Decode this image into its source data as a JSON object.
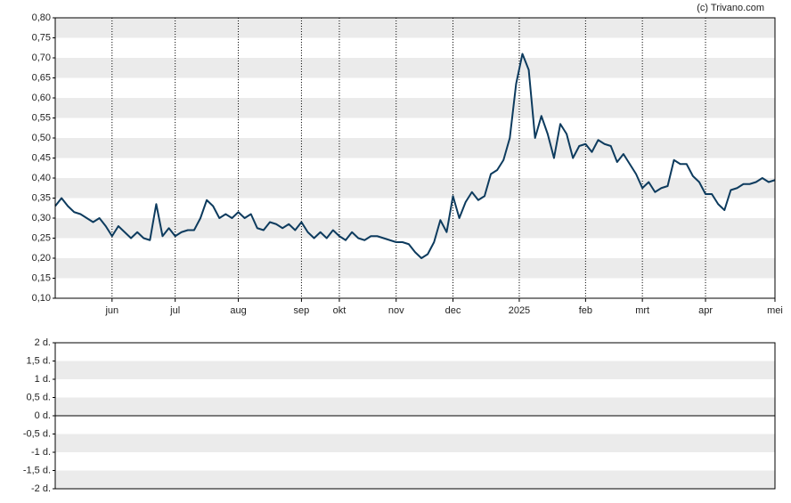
{
  "chart_data": [
    {
      "type": "line",
      "credit": "(c) Trivano.com",
      "series": [
        {
          "color": "#0d3b5e",
          "values": [
            0.33,
            0.35,
            0.33,
            0.315,
            0.31,
            0.3,
            0.29,
            0.3,
            0.28,
            0.255,
            0.28,
            0.265,
            0.25,
            0.265,
            0.25,
            0.245,
            0.335,
            0.255,
            0.275,
            0.255,
            0.265,
            0.27,
            0.27,
            0.3,
            0.345,
            0.33,
            0.3,
            0.31,
            0.3,
            0.315,
            0.3,
            0.31,
            0.275,
            0.27,
            0.29,
            0.285,
            0.275,
            0.285,
            0.27,
            0.29,
            0.265,
            0.25,
            0.265,
            0.25,
            0.27,
            0.255,
            0.245,
            0.265,
            0.25,
            0.245,
            0.255,
            0.255,
            0.25,
            0.245,
            0.24,
            0.24,
            0.235,
            0.215,
            0.2,
            0.21,
            0.24,
            0.295,
            0.265,
            0.355,
            0.3,
            0.34,
            0.365,
            0.345,
            0.355,
            0.41,
            0.42,
            0.445,
            0.5,
            0.635,
            0.71,
            0.67,
            0.5,
            0.555,
            0.51,
            0.45,
            0.535,
            0.51,
            0.45,
            0.48,
            0.485,
            0.465,
            0.495,
            0.485,
            0.48,
            0.44,
            0.46,
            0.435,
            0.41,
            0.375,
            0.39,
            0.365,
            0.375,
            0.38,
            0.445,
            0.435,
            0.435,
            0.405,
            0.39,
            0.36,
            0.36,
            0.335,
            0.32,
            0.37,
            0.375,
            0.385,
            0.385,
            0.39,
            0.4,
            0.39,
            0.395
          ]
        }
      ],
      "xlim": [
        0,
        114
      ],
      "xticks": [
        {
          "value": 9,
          "label": "jun"
        },
        {
          "value": 19,
          "label": "jul"
        },
        {
          "value": 29,
          "label": "aug"
        },
        {
          "value": 39,
          "label": "sep"
        },
        {
          "value": 45,
          "label": "okt"
        },
        {
          "value": 54,
          "label": "nov"
        },
        {
          "value": 63,
          "label": "dec"
        },
        {
          "value": 73.5,
          "label": "2025"
        },
        {
          "value": 84,
          "label": "feb"
        },
        {
          "value": 93,
          "label": "mrt"
        },
        {
          "value": 103,
          "label": "apr"
        },
        {
          "value": 114,
          "label": "mei"
        }
      ],
      "ylim": [
        0.1,
        0.8
      ],
      "yticks": [
        {
          "value": 0.1,
          "label": "0,10"
        },
        {
          "value": 0.15,
          "label": "0,15"
        },
        {
          "value": 0.2,
          "label": "0,20"
        },
        {
          "value": 0.25,
          "label": "0,25"
        },
        {
          "value": 0.3,
          "label": "0,30"
        },
        {
          "value": 0.35,
          "label": "0,35"
        },
        {
          "value": 0.4,
          "label": "0,40"
        },
        {
          "value": 0.45,
          "label": "0,45"
        },
        {
          "value": 0.5,
          "label": "0,50"
        },
        {
          "value": 0.55,
          "label": "0,55"
        },
        {
          "value": 0.6,
          "label": "0,60"
        },
        {
          "value": 0.65,
          "label": "0,65"
        },
        {
          "value": 0.7,
          "label": "0,70"
        },
        {
          "value": 0.75,
          "label": "0,75"
        },
        {
          "value": 0.8,
          "label": "0,80"
        }
      ],
      "grid": true
    },
    {
      "type": "bar",
      "ylim": [
        -2,
        2
      ],
      "yticks": [
        {
          "value": -2,
          "label": "-2 d."
        },
        {
          "value": -1.5,
          "label": "-1,5 d."
        },
        {
          "value": -1,
          "label": "-1 d."
        },
        {
          "value": -0.5,
          "label": "-0,5 d."
        },
        {
          "value": 0,
          "label": "0 d."
        },
        {
          "value": 0.5,
          "label": "0,5 d."
        },
        {
          "value": 1,
          "label": "1 d."
        },
        {
          "value": 1.5,
          "label": "1,5 d."
        },
        {
          "value": 2,
          "label": "2 d."
        }
      ]
    }
  ]
}
